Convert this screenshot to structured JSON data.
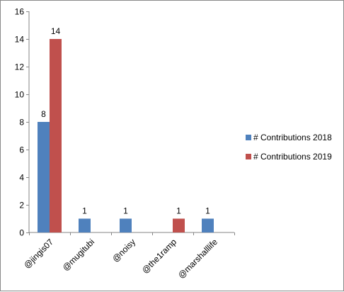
{
  "chart_data": {
    "type": "bar",
    "categories": [
      "@jingis07",
      "@mugitubi",
      "@noisy",
      "@the1ramp",
      "@marshalllife"
    ],
    "series": [
      {
        "name": "# Contributions 2018",
        "values": [
          8,
          1,
          1,
          null,
          1
        ],
        "color": "#4f81bd"
      },
      {
        "name": "# Contributions 2019",
        "values": [
          14,
          null,
          null,
          1,
          null
        ],
        "color": "#c0504d"
      }
    ],
    "ylim": [
      0,
      16
    ],
    "yticks": [
      0,
      2,
      4,
      6,
      8,
      10,
      12,
      14,
      16
    ],
    "grid": false,
    "legend": "right",
    "title": "",
    "xlabel": "",
    "ylabel": ""
  }
}
